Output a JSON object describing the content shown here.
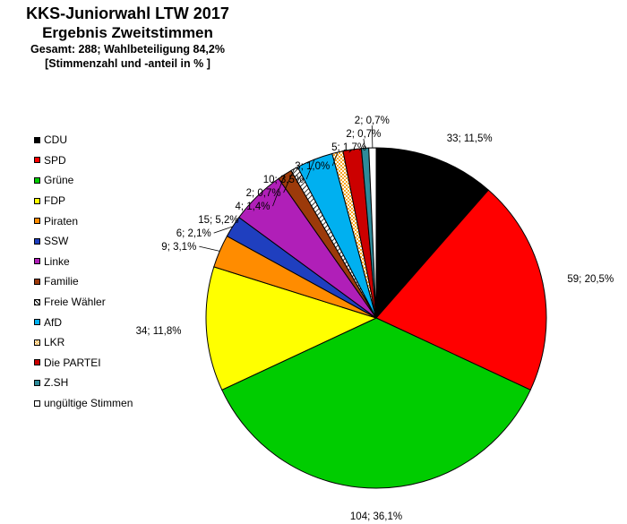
{
  "chart_data": {
    "type": "pie",
    "title": "KKS-Juniorwahl LTW 2017",
    "subtitle": "Ergebnis Zweitstimmen",
    "subtitle2": "Gesamt: 288; Wahlbeteiligung 84,2%",
    "subtitle3": "[Stimmenzahl und -anteil in % ]",
    "legend_position": "left",
    "start": "top",
    "direction": "clockwise",
    "slices": [
      {
        "name": "CDU",
        "value": 33,
        "label": "33; 11,5%",
        "color": "#000000"
      },
      {
        "name": "SPD",
        "value": 59,
        "label": "59; 20,5%",
        "color": "#ff0000"
      },
      {
        "name": "Grüne",
        "value": 104,
        "label": "104; 36,1%",
        "color": "#00cc00"
      },
      {
        "name": "FDP",
        "value": 34,
        "label": "34; 11,8%",
        "color": "#ffff00"
      },
      {
        "name": "Piraten",
        "value": 9,
        "label": "9; 3,1%",
        "color": "#ff8c00"
      },
      {
        "name": "SSW",
        "value": 6,
        "label": "6; 2,1%",
        "color": "#1f3fbf"
      },
      {
        "name": "Linke",
        "value": 15,
        "label": "15; 5,2%",
        "color": "#b01fb8"
      },
      {
        "name": "Familie",
        "value": 4,
        "label": "4; 1,4%",
        "color": "#9c3a0a"
      },
      {
        "name": "Freie Wähler",
        "value": 2,
        "label": "2; 0,7%",
        "color": "#ffffff",
        "pattern": "hatch"
      },
      {
        "name": "AfD",
        "value": 10,
        "label": "10; 3,5%",
        "color": "#00b0f0"
      },
      {
        "name": "LKR",
        "value": 3,
        "label": "3; 1,0%",
        "color": "#f5a623",
        "pattern": "checker"
      },
      {
        "name": "Die PARTEI",
        "value": 5,
        "label": "5; 1,7%",
        "color": "#cc0000"
      },
      {
        "name": "Z.SH",
        "value": 2,
        "label": "2; 0,7%",
        "color": "#2e8b9a"
      },
      {
        "name": "ungültige Stimmen",
        "value": 2,
        "label": "2; 0,7%",
        "color": "#ffffff"
      }
    ]
  }
}
